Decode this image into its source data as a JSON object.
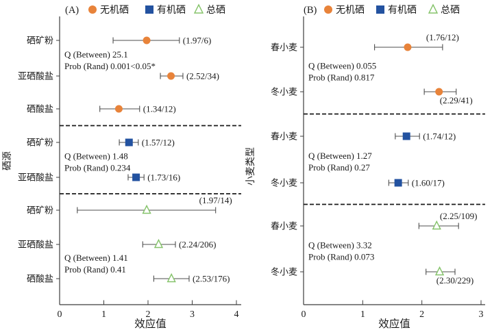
{
  "figure": {
    "background": "#ffffff",
    "text_color": "#1a1a1a",
    "axis_color": "#3c3c3c",
    "error_bar_color": "#4d4d4d",
    "separator_color": "#1a1a1a"
  },
  "legend": {
    "items": [
      {
        "label": "无机硒",
        "marker": "circle",
        "color": "#E8833A"
      },
      {
        "label": "有机硒",
        "marker": "square",
        "color": "#2352A0"
      },
      {
        "label": "总硒",
        "marker": "triangle-open",
        "color": "#85C36A"
      }
    ]
  },
  "chart_data": [
    {
      "type": "scatter",
      "variant": "forest-plot",
      "panel_label": "(A)",
      "xlabel": "效应值",
      "ylabel": "硒源",
      "xlim": [
        0,
        4
      ],
      "xticks": [
        "0",
        "1",
        "2",
        "3",
        "4"
      ],
      "grid": false,
      "legend_position": "top",
      "groups": [
        {
          "series": "无机硒",
          "marker": "circle",
          "stats_lines": [
            "Q (Between) 25.1",
            "Prob (Rand) 0.001<0.05*"
          ],
          "stats_after_row": 0,
          "rows": [
            {
              "category": "硒矿粉",
              "value": 1.97,
              "n": 6,
              "ci": [
                1.21,
                2.71
              ],
              "label": "(1.97/6)",
              "label_pos": "right"
            },
            {
              "category": "亚硒酸盐",
              "value": 2.52,
              "n": 34,
              "ci": [
                2.28,
                2.79
              ],
              "label": "(2.52/34)",
              "label_pos": "right"
            },
            {
              "category": "硒酸盐",
              "value": 1.34,
              "n": 12,
              "ci": [
                0.91,
                1.81
              ],
              "label": "(1.34/12)",
              "label_pos": "right"
            }
          ]
        },
        {
          "series": "有机硒",
          "marker": "square",
          "stats_lines": [
            "Q (Between) 1.48",
            "Prob (Rand) 0.234"
          ],
          "stats_after_row": 0,
          "rows": [
            {
              "category": "硒矿粉",
              "value": 1.57,
              "n": 12,
              "ci": [
                1.35,
                1.78
              ],
              "label": "(1.57/12)",
              "label_pos": "right"
            },
            {
              "category": "亚硒酸盐",
              "value": 1.73,
              "n": 16,
              "ci": [
                1.55,
                1.91
              ],
              "label": "(1.73/16)",
              "label_pos": "right"
            }
          ]
        },
        {
          "series": "总硒",
          "marker": "triangle-open",
          "stats_lines": [
            "Q (Between) 1.41",
            "Prob (Rand) 0.41"
          ],
          "stats_after_row": 1,
          "rows": [
            {
              "category": "硒矿粉",
              "value": 1.97,
              "n": 14,
              "ci": [
                0.4,
                3.53
              ],
              "label": "(1.97/14)",
              "label_pos": "above"
            },
            {
              "category": "亚硒酸盐",
              "value": 2.24,
              "n": 206,
              "ci": [
                1.88,
                2.62
              ],
              "label": "(2.24/206)",
              "label_pos": "right"
            },
            {
              "category": "硒酸盐",
              "value": 2.53,
              "n": 176,
              "ci": [
                2.13,
                2.93
              ],
              "label": "(2.53/176)",
              "label_pos": "right"
            }
          ]
        }
      ]
    },
    {
      "type": "scatter",
      "variant": "forest-plot",
      "panel_label": "(B)",
      "xlabel": "效应值",
      "ylabel": "小麦类型",
      "xlim": [
        0,
        3
      ],
      "xticks": [
        "0",
        "1",
        "2",
        "3"
      ],
      "grid": false,
      "legend_position": "top",
      "groups": [
        {
          "series": "无机硒",
          "marker": "circle",
          "stats_lines": [
            "Q (Between) 0.055",
            "Prob (Rand) 0.817"
          ],
          "stats_after_row": 0,
          "rows": [
            {
              "category": "春小麦",
              "value": 1.76,
              "n": 12,
              "ci": [
                1.2,
                2.35
              ],
              "label": "(1.76/12)",
              "label_pos": "above"
            },
            {
              "category": "冬小麦",
              "value": 2.29,
              "n": 41,
              "ci": [
                2.04,
                2.58
              ],
              "label": "(2.29/41)",
              "label_pos": "below"
            }
          ]
        },
        {
          "series": "有机硒",
          "marker": "square",
          "stats_lines": [
            "Q (Between) 1.27",
            "Prob (Rand) 0.27"
          ],
          "stats_after_row": 0,
          "rows": [
            {
              "category": "春小麦",
              "value": 1.74,
              "n": 12,
              "ci": [
                1.55,
                1.96
              ],
              "label": "(1.74/12)",
              "label_pos": "right"
            },
            {
              "category": "冬小麦",
              "value": 1.6,
              "n": 17,
              "ci": [
                1.44,
                1.77
              ],
              "label": "(1.60/17)",
              "label_pos": "right"
            }
          ]
        },
        {
          "series": "总硒",
          "marker": "triangle-open",
          "stats_lines": [
            "Q (Between) 3.32",
            "Prob (Rand) 0.073"
          ],
          "stats_after_row": 0,
          "rows": [
            {
              "category": "春小麦",
              "value": 2.25,
              "n": 109,
              "ci": [
                1.95,
                2.62
              ],
              "label": "(2.25/109)",
              "label_pos": "above"
            },
            {
              "category": "冬小麦",
              "value": 2.3,
              "n": 229,
              "ci": [
                2.07,
                2.56
              ],
              "label": "(2.30/229)",
              "label_pos": "below"
            }
          ]
        }
      ]
    }
  ]
}
